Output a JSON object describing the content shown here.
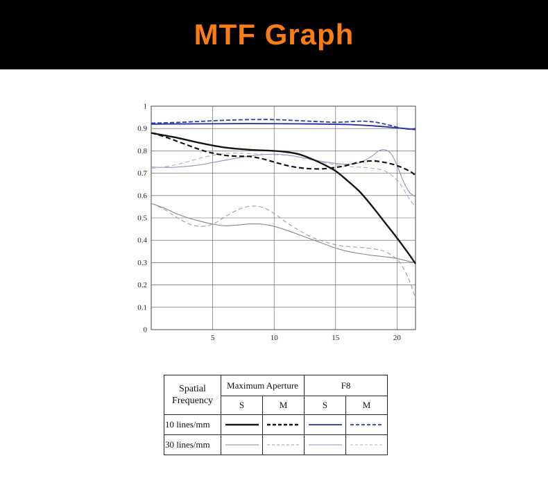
{
  "banner": {
    "title": "MTF Graph",
    "title_color": "#f87d15",
    "background": "#000000"
  },
  "chart_data": {
    "type": "line",
    "title": "MTF Graph",
    "xlabel": "",
    "ylabel": "",
    "xlim": [
      0,
      21.5
    ],
    "ylim": [
      0,
      1
    ],
    "x_ticks": [
      5,
      10,
      15,
      20
    ],
    "y_ticks": [
      0,
      0.1,
      0.2,
      0.3,
      0.4,
      0.5,
      0.6,
      0.7,
      0.8,
      0.9,
      1
    ],
    "grid": true,
    "grid_color": "#555555",
    "legend_position": "bottom-table",
    "series": [
      {
        "id": "max-aperture-30lines-s",
        "name": "Maximum Aperture 30 lines/mm S",
        "color": "#8d8576",
        "width": 1.1,
        "dash": "",
        "points": [
          [
            0,
            0.565
          ],
          [
            1,
            0.545
          ],
          [
            2,
            0.52
          ],
          [
            3,
            0.5
          ],
          [
            4,
            0.485
          ],
          [
            5,
            0.472
          ],
          [
            6,
            0.465
          ],
          [
            7,
            0.468
          ],
          [
            8,
            0.473
          ],
          [
            9,
            0.472
          ],
          [
            10,
            0.462
          ],
          [
            11,
            0.445
          ],
          [
            12,
            0.425
          ],
          [
            13,
            0.405
          ],
          [
            14,
            0.385
          ],
          [
            15,
            0.365
          ],
          [
            16,
            0.35
          ],
          [
            17,
            0.34
          ],
          [
            18,
            0.332
          ],
          [
            19,
            0.326
          ],
          [
            20,
            0.318
          ],
          [
            21,
            0.305
          ],
          [
            21.5,
            0.3
          ]
        ]
      },
      {
        "id": "max-aperture-30lines-m",
        "name": "Maximum Aperture 30 lines/mm M",
        "color": "#9b9b9b",
        "width": 1.1,
        "dash": "6,4",
        "points": [
          [
            0,
            0.565
          ],
          [
            1,
            0.54
          ],
          [
            2,
            0.505
          ],
          [
            3,
            0.475
          ],
          [
            4,
            0.462
          ],
          [
            5,
            0.472
          ],
          [
            6,
            0.505
          ],
          [
            7,
            0.535
          ],
          [
            8,
            0.552
          ],
          [
            9,
            0.548
          ],
          [
            10,
            0.52
          ],
          [
            11,
            0.48
          ],
          [
            12,
            0.445
          ],
          [
            13,
            0.415
          ],
          [
            14,
            0.395
          ],
          [
            15,
            0.38
          ],
          [
            16,
            0.372
          ],
          [
            17,
            0.368
          ],
          [
            18,
            0.362
          ],
          [
            19,
            0.35
          ],
          [
            20,
            0.315
          ],
          [
            20.5,
            0.275
          ],
          [
            21,
            0.22
          ],
          [
            21.5,
            0.14
          ]
        ]
      },
      {
        "id": "f8-30lines-s",
        "name": "F8 30 lines/mm S",
        "color": "#8f96bd",
        "width": 1.1,
        "dash": "",
        "points": [
          [
            0,
            0.728
          ],
          [
            1,
            0.726
          ],
          [
            2,
            0.727
          ],
          [
            3,
            0.731
          ],
          [
            4,
            0.738
          ],
          [
            5,
            0.748
          ],
          [
            6,
            0.758
          ],
          [
            7,
            0.768
          ],
          [
            8,
            0.777
          ],
          [
            9,
            0.783
          ],
          [
            10,
            0.785
          ],
          [
            11,
            0.782
          ],
          [
            12,
            0.773
          ],
          [
            13,
            0.762
          ],
          [
            14,
            0.752
          ],
          [
            15,
            0.744
          ],
          [
            16,
            0.74
          ],
          [
            17,
            0.748
          ],
          [
            18,
            0.778
          ],
          [
            18.5,
            0.8
          ],
          [
            19,
            0.805
          ],
          [
            19.5,
            0.788
          ],
          [
            20,
            0.735
          ],
          [
            20.5,
            0.665
          ],
          [
            21,
            0.615
          ],
          [
            21.5,
            0.595
          ]
        ]
      },
      {
        "id": "f8-30lines-m",
        "name": "F8 30 lines/mm M",
        "color": "#a3abd2",
        "width": 1.1,
        "dash": "6,4",
        "points": [
          [
            0,
            0.722
          ],
          [
            1,
            0.728
          ],
          [
            2,
            0.738
          ],
          [
            3,
            0.752
          ],
          [
            4,
            0.768
          ],
          [
            5,
            0.78
          ],
          [
            6,
            0.788
          ],
          [
            7,
            0.79
          ],
          [
            8,
            0.788
          ],
          [
            9,
            0.785
          ],
          [
            10,
            0.783
          ],
          [
            11,
            0.78
          ],
          [
            12,
            0.772
          ],
          [
            13,
            0.76
          ],
          [
            14,
            0.748
          ],
          [
            15,
            0.738
          ],
          [
            16,
            0.73
          ],
          [
            17,
            0.727
          ],
          [
            18,
            0.722
          ],
          [
            19,
            0.71
          ],
          [
            20,
            0.67
          ],
          [
            20.5,
            0.63
          ],
          [
            21,
            0.585
          ],
          [
            21.5,
            0.55
          ]
        ]
      },
      {
        "id": "max-aperture-10lines-s",
        "name": "Maximum Aperture 10 lines/mm S",
        "color": "#141414",
        "width": 2.4,
        "dash": "",
        "points": [
          [
            0,
            0.88
          ],
          [
            2,
            0.86
          ],
          [
            4,
            0.835
          ],
          [
            6,
            0.815
          ],
          [
            8,
            0.805
          ],
          [
            10,
            0.8
          ],
          [
            11,
            0.795
          ],
          [
            12,
            0.785
          ],
          [
            13,
            0.765
          ],
          [
            14,
            0.74
          ],
          [
            15,
            0.71
          ],
          [
            16,
            0.665
          ],
          [
            17,
            0.615
          ],
          [
            18,
            0.55
          ],
          [
            19,
            0.48
          ],
          [
            20,
            0.41
          ],
          [
            21,
            0.335
          ],
          [
            21.5,
            0.295
          ]
        ]
      },
      {
        "id": "max-aperture-10lines-m",
        "name": "Maximum Aperture 10 lines/mm M",
        "color": "#141414",
        "width": 2.2,
        "dash": "7,4",
        "points": [
          [
            0,
            0.88
          ],
          [
            1,
            0.865
          ],
          [
            2,
            0.845
          ],
          [
            3,
            0.825
          ],
          [
            4,
            0.805
          ],
          [
            5,
            0.79
          ],
          [
            6,
            0.78
          ],
          [
            7,
            0.776
          ],
          [
            8,
            0.775
          ],
          [
            9,
            0.765
          ],
          [
            10,
            0.75
          ],
          [
            11,
            0.735
          ],
          [
            12,
            0.725
          ],
          [
            13,
            0.72
          ],
          [
            14,
            0.72
          ],
          [
            15,
            0.726
          ],
          [
            16,
            0.736
          ],
          [
            17,
            0.75
          ],
          [
            18,
            0.755
          ],
          [
            19,
            0.748
          ],
          [
            20,
            0.734
          ],
          [
            21,
            0.71
          ],
          [
            21.5,
            0.69
          ]
        ]
      },
      {
        "id": "f8-10lines-s",
        "name": "F8 10 lines/mm S",
        "color": "#2433a8",
        "width": 1.9,
        "dash": "",
        "points": [
          [
            0,
            0.92
          ],
          [
            4,
            0.921
          ],
          [
            8,
            0.922
          ],
          [
            12,
            0.921
          ],
          [
            14,
            0.92
          ],
          [
            16,
            0.918
          ],
          [
            18,
            0.912
          ],
          [
            19,
            0.908
          ],
          [
            20,
            0.903
          ],
          [
            21,
            0.898
          ],
          [
            21.5,
            0.895
          ]
        ]
      },
      {
        "id": "f8-10lines-m",
        "name": "F8 10 lines/mm M",
        "color": "#2c3cb4",
        "width": 1.8,
        "dash": "6,3",
        "points": [
          [
            0,
            0.924
          ],
          [
            2,
            0.927
          ],
          [
            4,
            0.932
          ],
          [
            6,
            0.937
          ],
          [
            8,
            0.94
          ],
          [
            10,
            0.94
          ],
          [
            12,
            0.935
          ],
          [
            14,
            0.93
          ],
          [
            15,
            0.928
          ],
          [
            16,
            0.93
          ],
          [
            17,
            0.933
          ],
          [
            18,
            0.93
          ],
          [
            19,
            0.92
          ],
          [
            20,
            0.906
          ],
          [
            20.5,
            0.9
          ],
          [
            21,
            0.897
          ],
          [
            21.5,
            0.9
          ]
        ]
      }
    ]
  },
  "legend_table": {
    "header_col": "Spatial Frequency",
    "groups": [
      "Maximum Aperture",
      "F8"
    ],
    "subheaders": [
      "S",
      "M",
      "S",
      "M"
    ],
    "rows": [
      {
        "label": "10 lines/mm",
        "samples": [
          {
            "color": "#141414",
            "width": 2.6,
            "dash": ""
          },
          {
            "color": "#141414",
            "width": 2.6,
            "dash": "5,3"
          },
          {
            "color": "#2433a8",
            "width": 1.8,
            "dash": ""
          },
          {
            "color": "#2c3cb4",
            "width": 1.8,
            "dash": "5,3"
          }
        ]
      },
      {
        "label": "30 lines/mm",
        "samples": [
          {
            "color": "#8d8576",
            "width": 1.1,
            "dash": ""
          },
          {
            "color": "#9b9b9b",
            "width": 1.1,
            "dash": "4,3"
          },
          {
            "color": "#8f96bd",
            "width": 1.1,
            "dash": ""
          },
          {
            "color": "#a3abd2",
            "width": 1.1,
            "dash": "4,3"
          }
        ]
      }
    ]
  }
}
